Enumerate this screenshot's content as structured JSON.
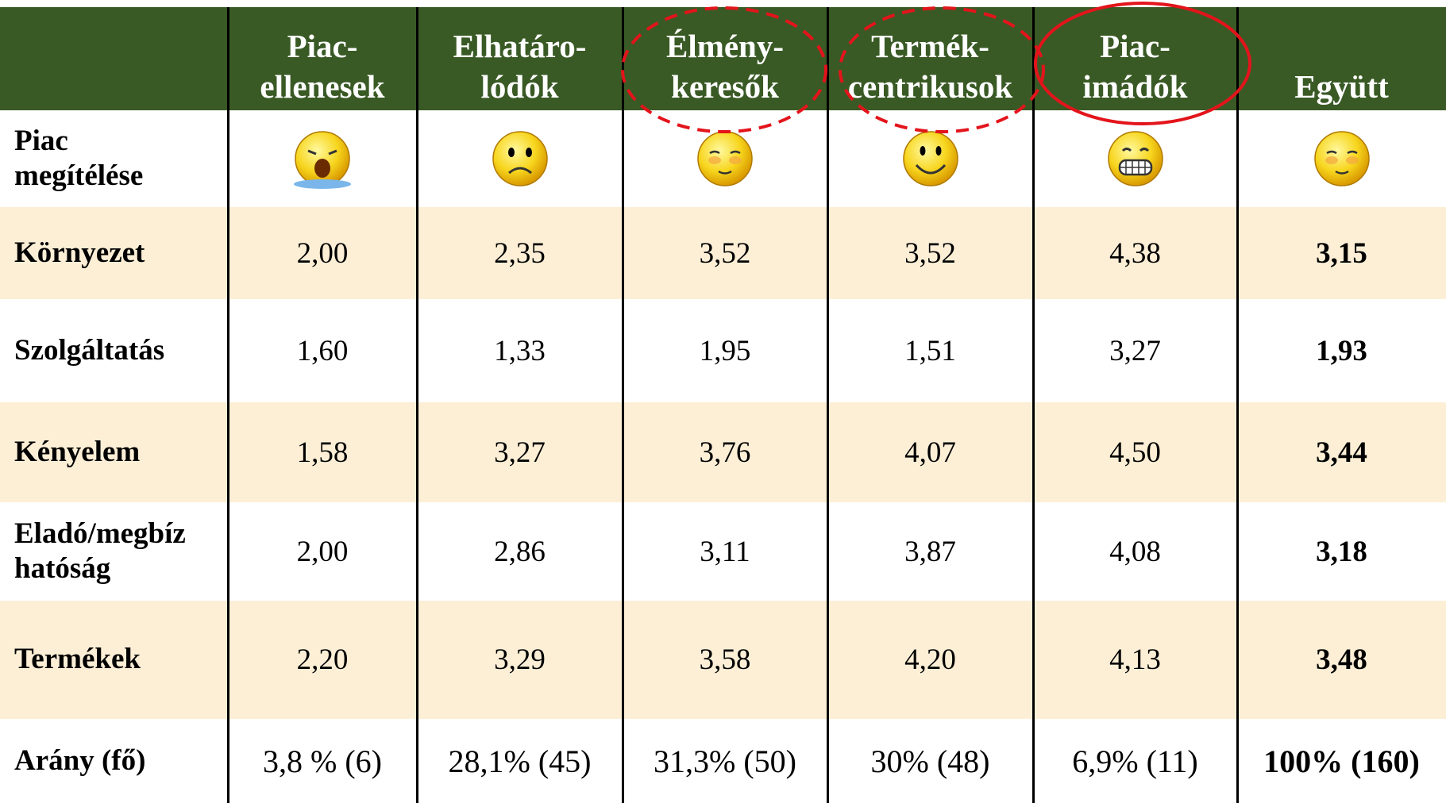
{
  "table": {
    "header": [
      "Piac-\nellenesek",
      "Elhatáro-\nlódók",
      "Élmény-\nkeresők",
      "Termék-\ncentrikusok",
      "Piac-\nimádók",
      "Együtt"
    ],
    "rating_label": "Piac\nmegítélése",
    "rows": [
      [
        "Környezet",
        "2,00",
        "2,35",
        "3,52",
        "3,52",
        "4,38",
        "3,15"
      ],
      [
        "Szolgáltatás",
        "1,60",
        "1,33",
        "1,95",
        "1,51",
        "3,27",
        "1,93"
      ],
      [
        "Kényelem",
        "1,58",
        "3,27",
        "3,76",
        "4,07",
        "4,50",
        "3,44"
      ],
      [
        "Eladó/megbíz\nhatóság",
        "2,00",
        "2,86",
        "3,11",
        "3,87",
        "4,08",
        "3,18"
      ],
      [
        "Termékek",
        "2,20",
        "3,29",
        "3,58",
        "4,20",
        "4,13",
        "3,48"
      ],
      [
        "Arány (fő)",
        "3,8 % (6)",
        "28,1% (45)",
        "31,3% (50)",
        "30% (48)",
        "6,9% (11)",
        "100% (160)"
      ]
    ]
  }
}
